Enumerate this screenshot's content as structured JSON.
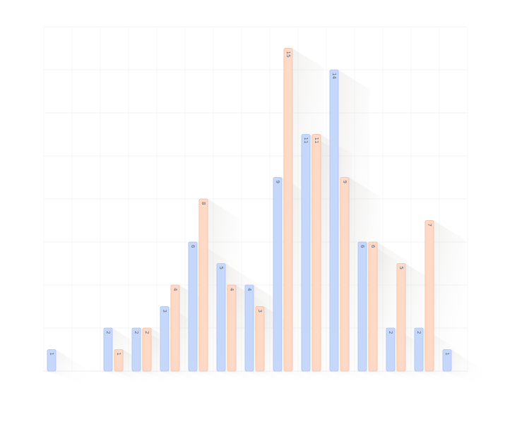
{
  "chart_data": {
    "type": "bar",
    "title": "",
    "xlabel": "",
    "ylabel": "",
    "categories": [
      "",
      "",
      "",
      "",
      "",
      "",
      "",
      "",
      "",
      "",
      "",
      "",
      "",
      "",
      ""
    ],
    "ylim": [
      0,
      16
    ],
    "grid": true,
    "legend": "none",
    "series": [
      {
        "color": "#c5d8fb",
        "stroke": "#a9c2f2",
        "values": [
          1,
          0,
          2,
          2,
          3,
          6,
          5,
          4,
          9,
          11,
          14,
          6,
          2,
          2,
          1
        ]
      },
      {
        "color": "#fdd9c6",
        "stroke": "#f0bda3",
        "values": [
          0,
          0,
          1,
          2,
          4,
          8,
          4,
          3,
          15,
          11,
          9,
          6,
          5,
          7,
          0
        ]
      }
    ]
  }
}
